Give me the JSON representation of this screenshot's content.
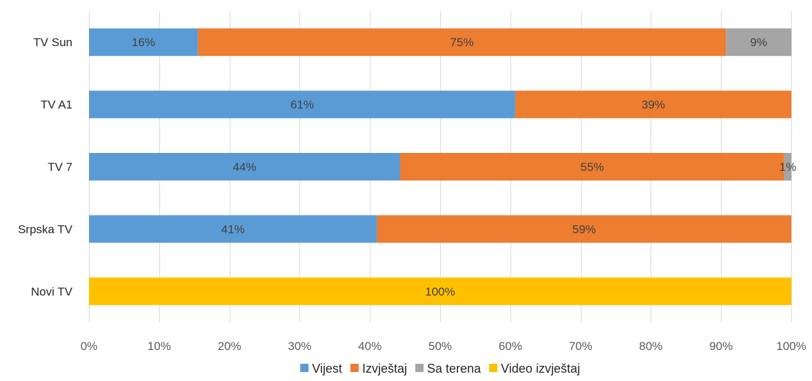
{
  "chart_data": {
    "type": "bar",
    "orientation": "horizontal",
    "stacked": "percent",
    "title": "",
    "xlabel": "",
    "ylabel": "",
    "xlim": [
      0,
      100
    ],
    "x_ticks": [
      "0%",
      "10%",
      "20%",
      "30%",
      "40%",
      "50%",
      "60%",
      "70%",
      "80%",
      "90%",
      "100%"
    ],
    "grid": true,
    "legend": "bottom",
    "categories": [
      "TV Sun",
      "TV A1",
      "TV 7",
      "Srpska TV",
      "Novi TV"
    ],
    "series": [
      {
        "name": "Vijest",
        "color": "#5b9bd5",
        "values": [
          15.5,
          60.7,
          44.3,
          41.0,
          0
        ],
        "labels": [
          "16%",
          "61%",
          "44%",
          "41%",
          ""
        ]
      },
      {
        "name": "Izvještaj",
        "color": "#ed7d31",
        "values": [
          75.2,
          39.3,
          54.7,
          59.0,
          0
        ],
        "labels": [
          "75%",
          "39%",
          "55%",
          "59%",
          ""
        ]
      },
      {
        "name": "Sa terena",
        "color": "#a5a5a5",
        "values": [
          9.3,
          0,
          1.0,
          0,
          0
        ],
        "labels": [
          "9%",
          "",
          "1%",
          "",
          ""
        ]
      },
      {
        "name": "Video izvještaj",
        "color": "#ffc000",
        "values": [
          0,
          0,
          0,
          0,
          100
        ],
        "labels": [
          "",
          "",
          "",
          "",
          "100%"
        ]
      }
    ]
  }
}
